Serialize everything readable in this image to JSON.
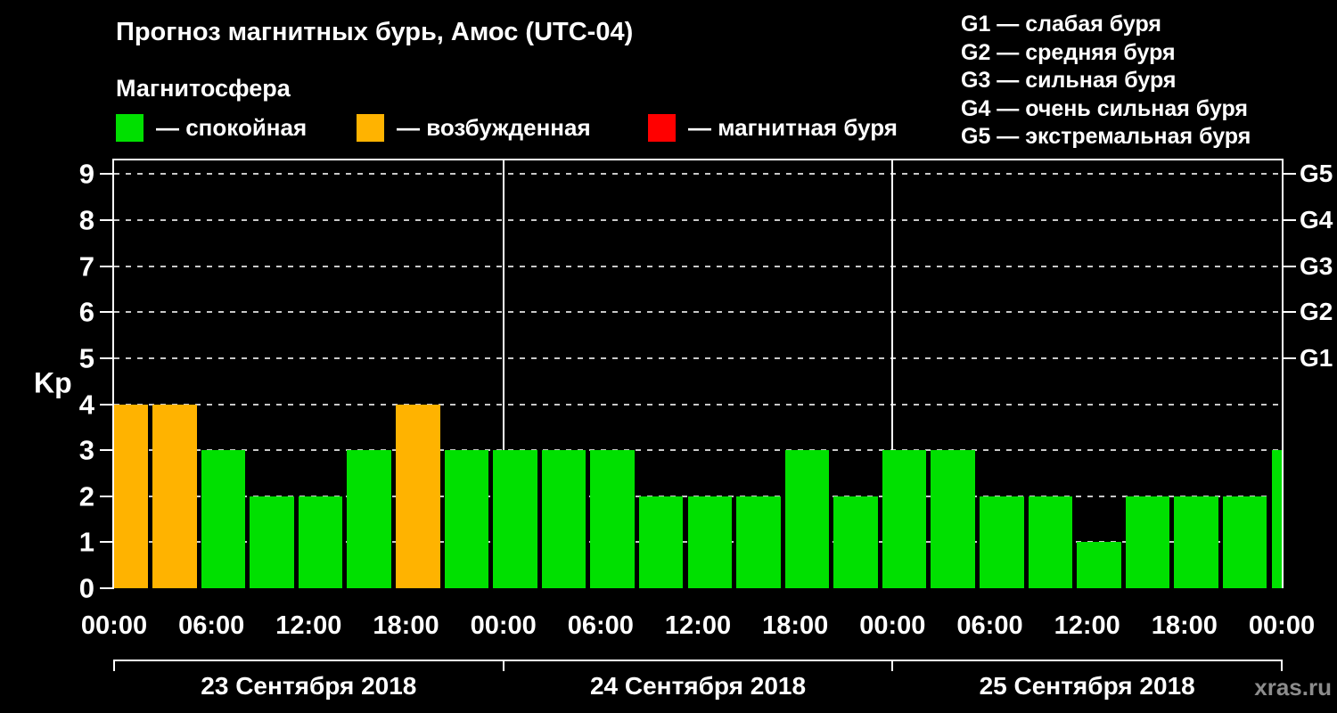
{
  "title": "Прогноз магнитных бурь, Амос (UTC-04)",
  "subtitle": "Магнитосфера",
  "watermark": "xras.ru",
  "colors": {
    "quiet": "#00e000",
    "excited": "#ffb300",
    "storm": "#ff0000",
    "background": "#000000",
    "text": "#ffffff",
    "grid": "#c8c8c8",
    "watermark": "#8c8c8c"
  },
  "legend": {
    "items": [
      {
        "label": "— спокойная",
        "state": "quiet"
      },
      {
        "label": "— возбужденная",
        "state": "excited"
      },
      {
        "label": "— магнитная буря",
        "state": "storm"
      }
    ]
  },
  "g_legend": {
    "items": [
      "G1 — слабая буря",
      "G2 — средняя буря",
      "G3 — сильная буря",
      "G4 — очень сильная буря",
      "G5 — экстремальная буря"
    ]
  },
  "chart_data": {
    "type": "bar",
    "title": "Прогноз магнитных бурь, Амос (UTC-04)",
    "xlabel": "",
    "ylabel": "Kp",
    "ylim": [
      0,
      9.3
    ],
    "yticks": [
      0,
      1,
      2,
      3,
      4,
      5,
      6,
      7,
      8,
      9
    ],
    "grid": true,
    "interval_hours": 3,
    "right_axis_labels": [
      {
        "label": "G1",
        "kp": 5
      },
      {
        "label": "G2",
        "kp": 6
      },
      {
        "label": "G3",
        "kp": 7
      },
      {
        "label": "G4",
        "kp": 8
      },
      {
        "label": "G5",
        "kp": 9
      }
    ],
    "x_tick_labels": [
      "00:00",
      "06:00",
      "12:00",
      "18:00",
      "00:00",
      "06:00",
      "12:00",
      "18:00",
      "00:00",
      "06:00",
      "12:00",
      "18:00",
      "00:00"
    ],
    "days": [
      {
        "date": "23 Сентября 2018",
        "kp": [
          4,
          4,
          3,
          2,
          2,
          3,
          4,
          3
        ],
        "states": [
          "excited",
          "excited",
          "quiet",
          "quiet",
          "quiet",
          "quiet",
          "excited",
          "quiet"
        ]
      },
      {
        "date": "24 Сентября 2018",
        "kp": [
          3,
          3,
          3,
          2,
          2,
          2,
          3,
          2
        ],
        "states": [
          "quiet",
          "quiet",
          "quiet",
          "quiet",
          "quiet",
          "quiet",
          "quiet",
          "quiet"
        ]
      },
      {
        "date": "25 Сентября 2018",
        "kp": [
          3,
          3,
          2,
          2,
          1,
          2,
          2,
          2
        ],
        "states": [
          "quiet",
          "quiet",
          "quiet",
          "quiet",
          "quiet",
          "quiet",
          "quiet",
          "quiet"
        ]
      }
    ],
    "next_day_partial_bar": {
      "kp": 3,
      "state": "quiet"
    }
  }
}
